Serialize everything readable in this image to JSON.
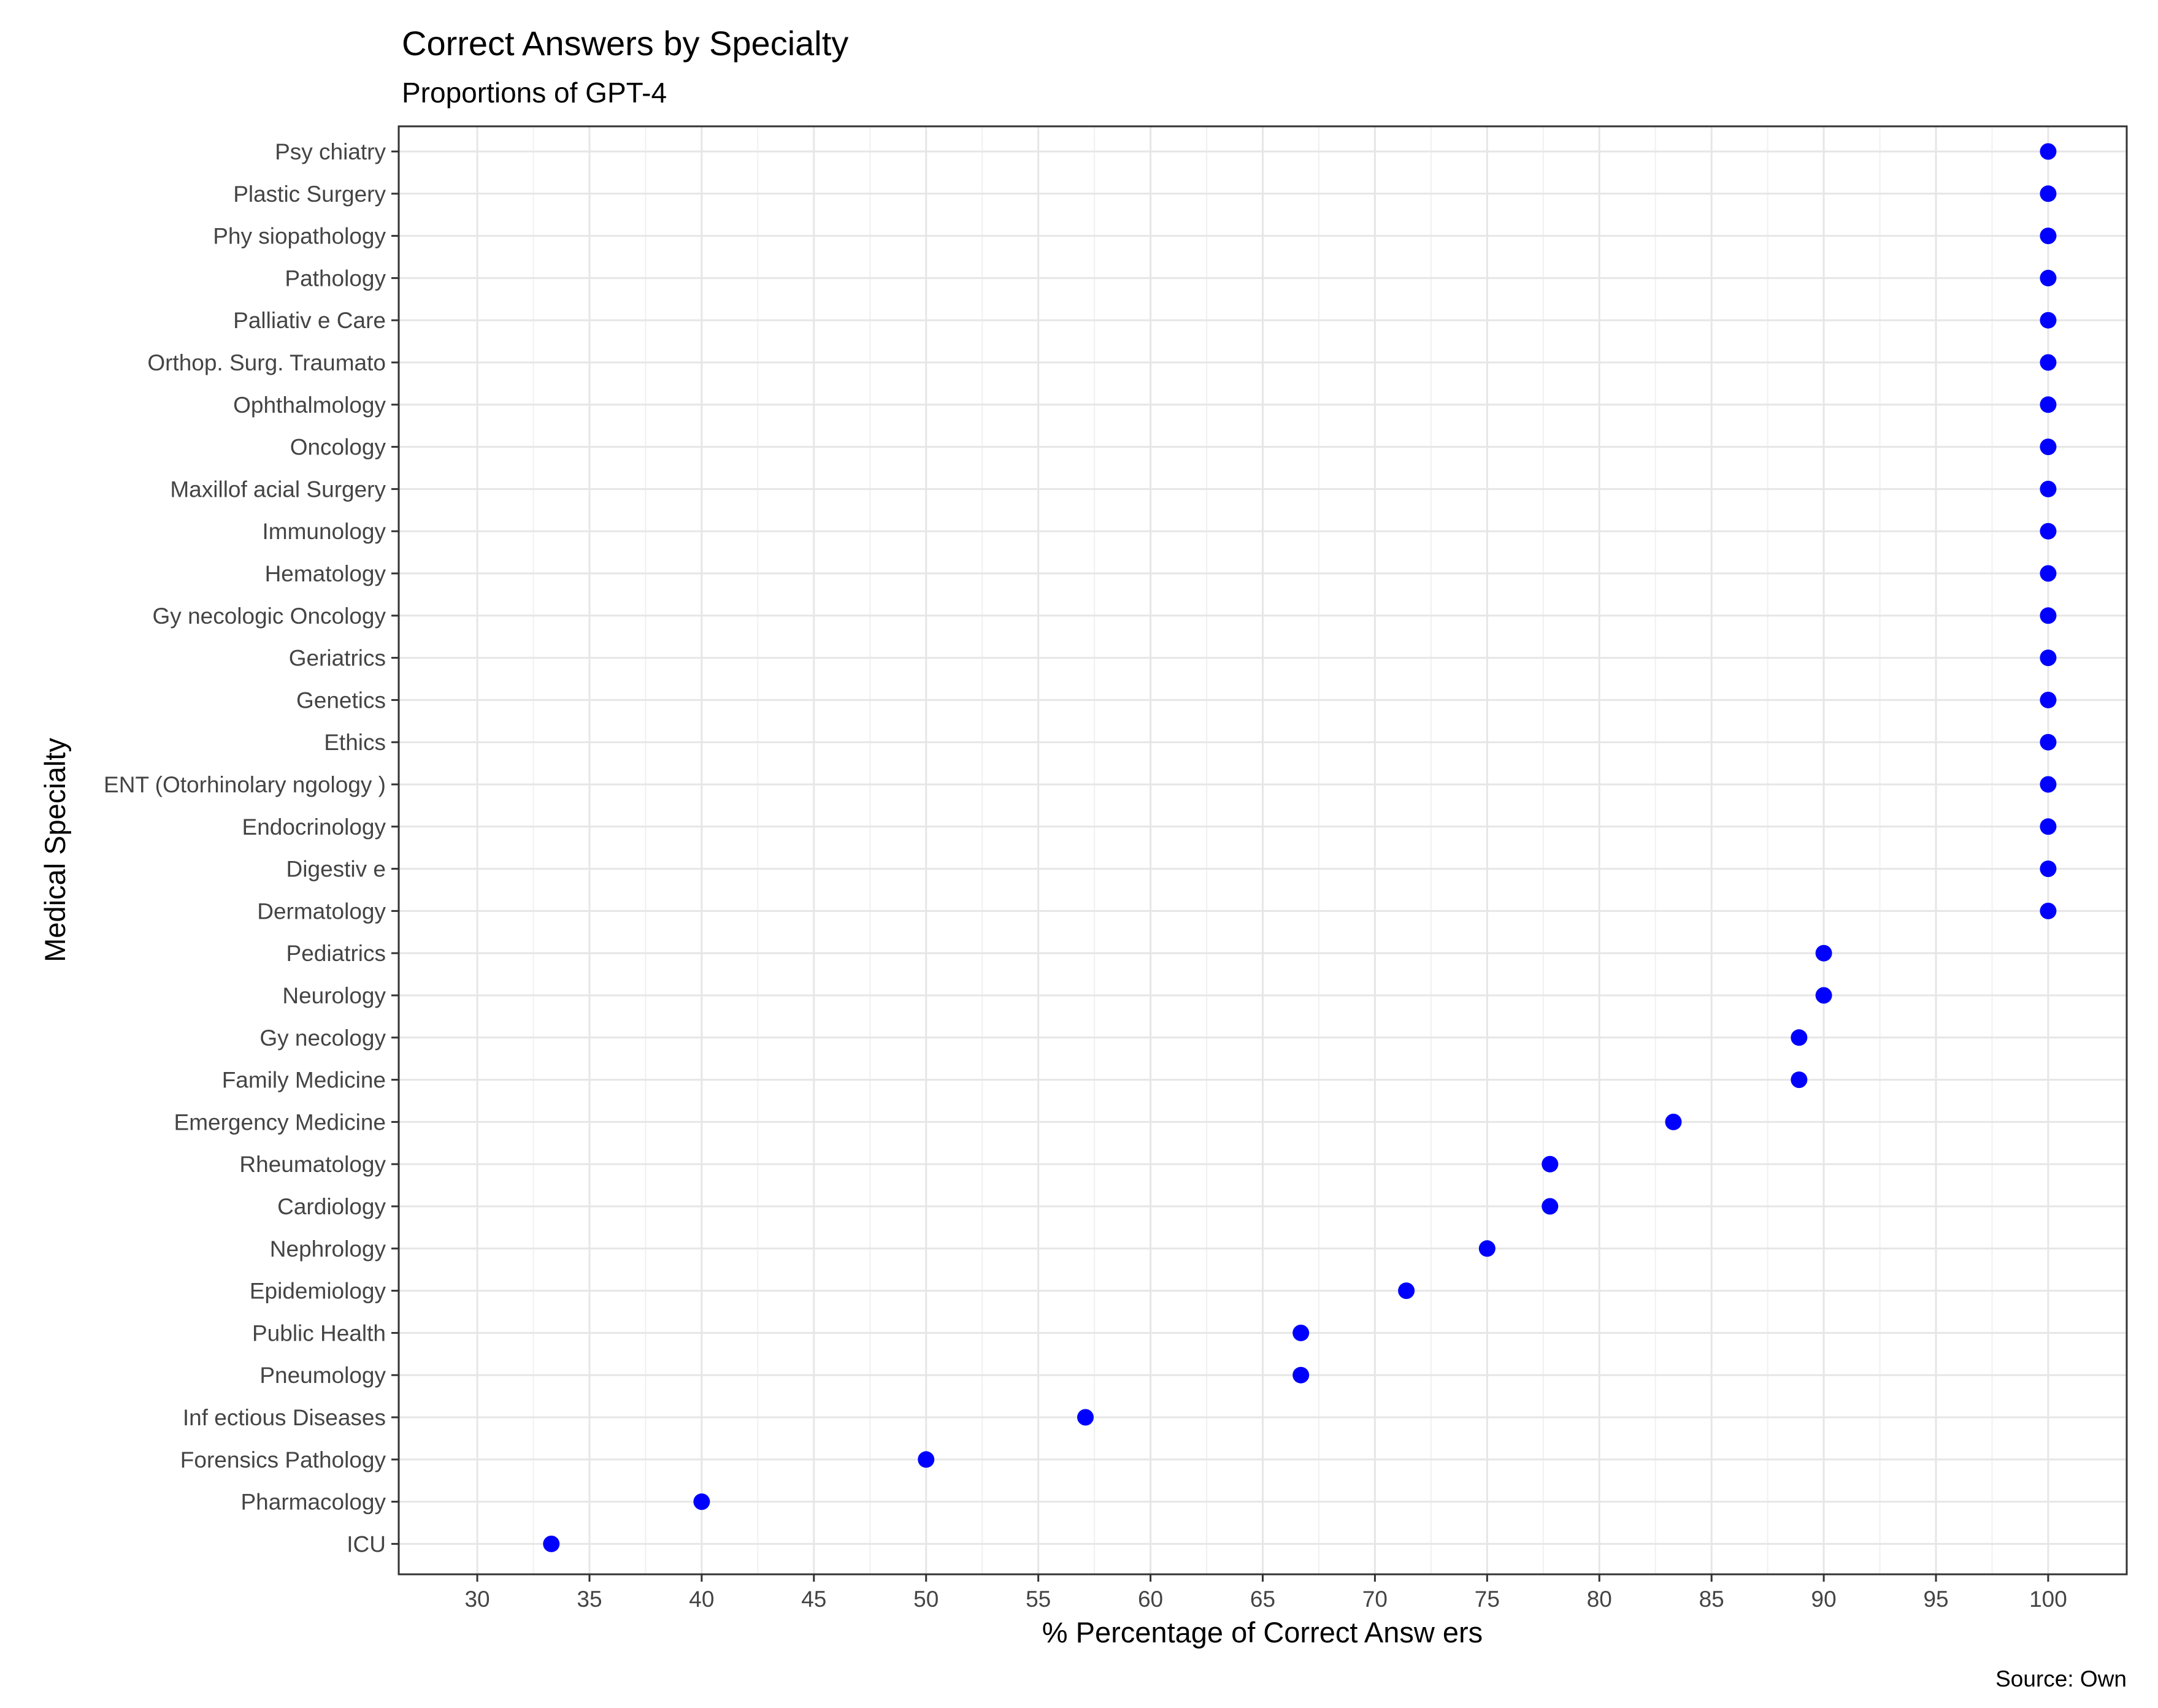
{
  "chart_data": {
    "type": "scatter",
    "title": "Correct Answers by Specialty",
    "subtitle": "Proportions of GPT-4",
    "xlabel": "% Percentage of Correct Answ ers",
    "ylabel": "Medical Specialty",
    "caption": "Source: Own",
    "xlim": [
      26.5,
      103.5
    ],
    "x_ticks": [
      30,
      35,
      40,
      45,
      50,
      55,
      60,
      65,
      70,
      75,
      80,
      85,
      90,
      95,
      100
    ],
    "grid": true,
    "point_color": "#0000ff",
    "categories": [
      "Psy chiatry",
      "Plastic Surgery",
      "Phy siopathology",
      "Pathology",
      "Palliativ e Care",
      "Orthop. Surg. Traumato",
      "Ophthalmology",
      "Oncology",
      "Maxillof acial Surgery",
      "Immunology",
      "Hematology",
      "Gy necologic Oncology",
      "Geriatrics",
      "Genetics",
      "Ethics",
      "ENT (Otorhinolary ngology )",
      "Endocrinology",
      "Digestiv e",
      "Dermatology",
      "Pediatrics",
      "Neurology",
      "Gy necology",
      "Family Medicine",
      "Emergency Medicine",
      "Rheumatology",
      "Cardiology",
      "Nephrology",
      "Epidemiology",
      "Public Health",
      "Pneumology",
      "Inf ectious Diseases",
      "Forensics Pathology",
      "Pharmacology",
      "ICU"
    ],
    "values": [
      100,
      100,
      100,
      100,
      100,
      100,
      100,
      100,
      100,
      100,
      100,
      100,
      100,
      100,
      100,
      100,
      100,
      100,
      100,
      90,
      90,
      88.9,
      88.9,
      83.3,
      77.8,
      77.8,
      75,
      71.4,
      66.7,
      66.7,
      57.1,
      50,
      40,
      33.3
    ]
  }
}
